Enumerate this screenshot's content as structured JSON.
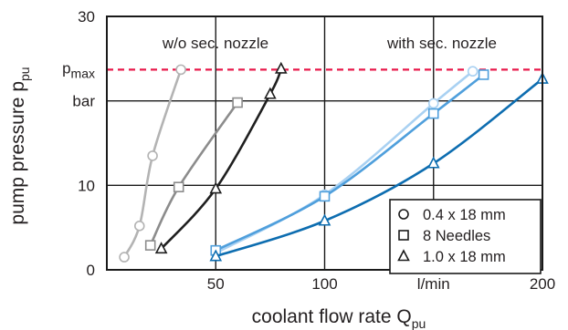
{
  "chart_data": {
    "type": "line",
    "xlabel": {
      "main": "coolant flow rate Q",
      "sub": "pu"
    },
    "ylabel": {
      "main": "pump pressure p",
      "sub": "pu"
    },
    "xlim": [
      0,
      200
    ],
    "ylim": [
      0,
      30
    ],
    "x_ticks": [
      "50",
      "100",
      "l/min",
      "200"
    ],
    "y_ticks": [
      "0",
      "10",
      "bar",
      "30"
    ],
    "pmax_label": {
      "main": "p",
      "sub": "max"
    },
    "pmax_value": 23.7,
    "grid": true,
    "annotations": {
      "left": "w/o sec. nozzle",
      "right": "with sec. nozzle"
    },
    "legend": {
      "position": "bottom-right",
      "entries": [
        {
          "marker": "circle",
          "label": "0.4 x 18 mm"
        },
        {
          "marker": "square",
          "label": "8 Needles"
        },
        {
          "marker": "triangle",
          "label": "1.0 x 18 mm"
        }
      ]
    },
    "series": [
      {
        "marker": "circle",
        "color": "#b3b3b3",
        "points": [
          [
            8,
            1.5
          ],
          [
            15,
            5.2
          ],
          [
            21,
            13.5
          ],
          [
            34,
            23.7
          ]
        ]
      },
      {
        "marker": "square",
        "color": "#8c8c8c",
        "points": [
          [
            20,
            2.9
          ],
          [
            33,
            9.8
          ],
          [
            60,
            19.8
          ]
        ]
      },
      {
        "marker": "triangle",
        "color": "#1f1f1f",
        "points": [
          [
            25,
            2.5
          ],
          [
            50,
            9.6
          ],
          [
            75,
            20.8
          ],
          [
            80,
            23.8
          ]
        ]
      },
      {
        "marker": "circle",
        "color": "#a9d1f2",
        "points": [
          [
            50,
            2.0
          ],
          [
            100,
            8.9
          ],
          [
            150,
            19.7
          ],
          [
            168,
            23.5
          ]
        ]
      },
      {
        "marker": "square",
        "color": "#4f9fdc",
        "points": [
          [
            50,
            2.3
          ],
          [
            100,
            8.7
          ],
          [
            150,
            18.5
          ],
          [
            173,
            23.1
          ]
        ]
      },
      {
        "marker": "triangle",
        "color": "#0d6db0",
        "points": [
          [
            50,
            1.6
          ],
          [
            100,
            5.8
          ],
          [
            150,
            12.6
          ],
          [
            200,
            22.6
          ]
        ]
      }
    ]
  }
}
